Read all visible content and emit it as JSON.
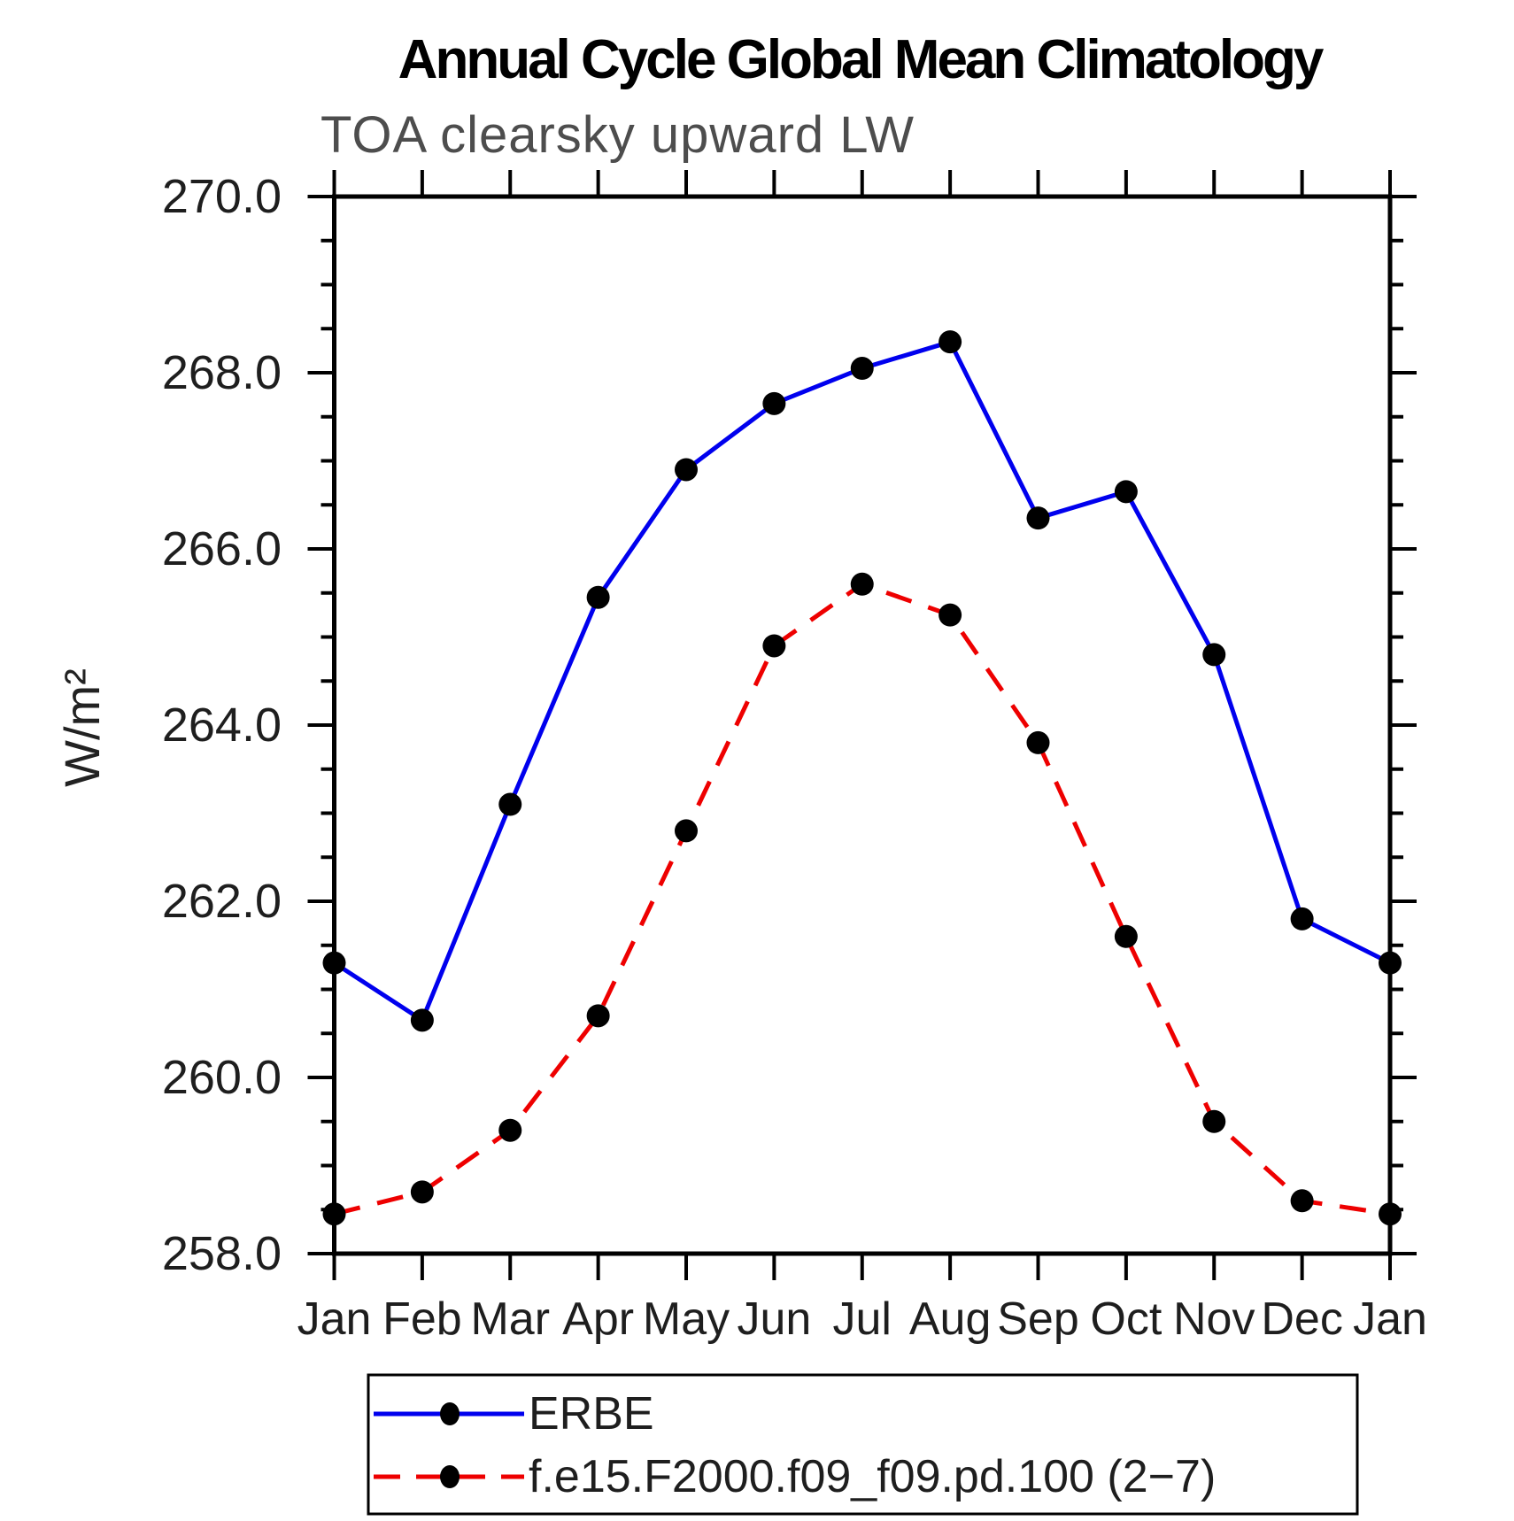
{
  "title": "Annual Cycle Global Mean Climatology",
  "subtitle": "TOA clearsky upward LW",
  "ylabel": "W/m²",
  "chart_data": {
    "type": "line",
    "categories": [
      "Jan",
      "Feb",
      "Mar",
      "Apr",
      "May",
      "Jun",
      "Jul",
      "Aug",
      "Sep",
      "Oct",
      "Nov",
      "Dec",
      "Jan"
    ],
    "series": [
      {
        "name": "ERBE",
        "color": "#0000ee",
        "line_style": "solid",
        "marker": "filled-circle",
        "marker_color": "#000000",
        "values": [
          261.3,
          260.65,
          263.1,
          265.45,
          266.9,
          267.65,
          268.05,
          268.35,
          266.35,
          266.65,
          264.8,
          261.8,
          261.3
        ]
      },
      {
        "name": "f.e15.F2000.f09_f09.pd.100 (2−7)",
        "color": "#ee0000",
        "line_style": "dashed",
        "marker": "filled-circle",
        "marker_color": "#000000",
        "values": [
          258.45,
          258.7,
          259.4,
          260.7,
          262.8,
          264.9,
          265.6,
          265.25,
          263.8,
          261.6,
          259.5,
          258.6,
          258.45
        ]
      }
    ],
    "xlabel": "",
    "ylim": [
      258.0,
      270.0
    ],
    "ytick_major_interval": 2.0,
    "ytick_minor_interval": 0.5,
    "ytick_labels": [
      "258.0",
      "260.0",
      "262.0",
      "264.0",
      "266.0",
      "268.0",
      "270.0"
    ],
    "grid": false,
    "legend_position": "bottom"
  }
}
